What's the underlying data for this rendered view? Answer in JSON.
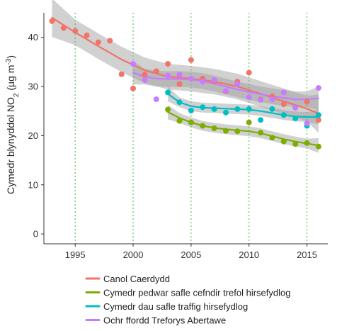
{
  "chart_data": {
    "type": "scatter",
    "title": "",
    "xlabel": "",
    "ylabel": "Cymedr blynyddol NO",
    "ylabel_sub": "2",
    "ylabel_units": " (µg m",
    "ylabel_sup": "-3",
    "ylabel_close": ")",
    "xlim": [
      1992.3,
      2016.8
    ],
    "ylim": [
      -2,
      45
    ],
    "xticks": [
      1995,
      2000,
      2005,
      2010,
      2015
    ],
    "xtick_labels": [
      "1995",
      "2000",
      "2005",
      "2010",
      "2015"
    ],
    "yticks": [
      0,
      10,
      20,
      30,
      40
    ],
    "ytick_labels": [
      "0",
      "10",
      "20",
      "30",
      "40"
    ],
    "vertical_gridlines": [
      1995,
      2000,
      2005,
      2010,
      2015
    ],
    "legend_position": "bottom",
    "series": [
      {
        "name": "Canol Caerdydd",
        "color": "#f07468",
        "points": [
          [
            1993,
            43.3
          ],
          [
            1994,
            41.9
          ],
          [
            1995,
            41.3
          ],
          [
            1996,
            40.4
          ],
          [
            1997,
            39.0
          ],
          [
            1998,
            39.3
          ],
          [
            1999,
            32.5
          ],
          [
            2000,
            29.6
          ],
          [
            2001,
            32.4
          ],
          [
            2002,
            33.1
          ],
          [
            2003,
            34.6
          ],
          [
            2004,
            30.5
          ],
          [
            2005,
            35.4
          ],
          [
            2006,
            31.6
          ],
          [
            2007,
            31.0
          ],
          [
            2008,
            29.0
          ],
          [
            2009,
            31.0
          ],
          [
            2010,
            32.8
          ],
          [
            2011,
            27.4
          ],
          [
            2012,
            28.0
          ],
          [
            2013,
            26.4
          ],
          [
            2014,
            25.7
          ],
          [
            2015,
            26.9
          ],
          [
            2016,
            23.2
          ]
        ],
        "trend": [
          [
            1993,
            44.0
          ],
          [
            1995,
            41.0
          ],
          [
            1997,
            38.2
          ],
          [
            1999,
            35.5
          ],
          [
            2001,
            33.3
          ],
          [
            2003,
            32.0
          ],
          [
            2005,
            31.6
          ],
          [
            2007,
            31.0
          ],
          [
            2009,
            30.0
          ],
          [
            2011,
            28.5
          ],
          [
            2013,
            27.0
          ],
          [
            2015,
            25.5
          ],
          [
            2016,
            24.5
          ]
        ]
      },
      {
        "name": "Cymedr pedwar safle cefndir trefol hirsefydlog",
        "color": "#7cae00",
        "points": [
          [
            2003,
            25.3
          ],
          [
            2004,
            23.0
          ],
          [
            2005,
            22.7
          ],
          [
            2006,
            22.0
          ],
          [
            2007,
            21.5
          ],
          [
            2008,
            21.0
          ],
          [
            2009,
            20.9
          ],
          [
            2010,
            22.7
          ],
          [
            2011,
            20.6
          ],
          [
            2012,
            19.6
          ],
          [
            2013,
            18.8
          ],
          [
            2014,
            18.3
          ],
          [
            2015,
            18.5
          ],
          [
            2016,
            17.8
          ]
        ],
        "trend": [
          [
            2003,
            24.8
          ],
          [
            2004,
            23.6
          ],
          [
            2005,
            22.7
          ],
          [
            2006,
            22.0
          ],
          [
            2007,
            21.6
          ],
          [
            2008,
            21.3
          ],
          [
            2009,
            21.1
          ],
          [
            2010,
            20.9
          ],
          [
            2011,
            20.5
          ],
          [
            2012,
            19.9
          ],
          [
            2013,
            19.3
          ],
          [
            2014,
            18.8
          ],
          [
            2015,
            18.4
          ],
          [
            2016,
            18.0
          ]
        ]
      },
      {
        "name": "Cymedr dau safle traffig hirsefydlog",
        "color": "#00bfc4",
        "points": [
          [
            2003,
            28.8
          ],
          [
            2004,
            26.8
          ],
          [
            2005,
            25.1
          ],
          [
            2006,
            25.8
          ],
          [
            2007,
            25.4
          ],
          [
            2008,
            24.7
          ],
          [
            2009,
            25.4
          ],
          [
            2010,
            25.4
          ],
          [
            2011,
            23.2
          ],
          [
            2012,
            25.4
          ],
          [
            2013,
            24.2
          ],
          [
            2014,
            23.5
          ],
          [
            2015,
            22.0
          ],
          [
            2016,
            24.2
          ]
        ],
        "trend": [
          [
            2003,
            28.5
          ],
          [
            2004,
            26.8
          ],
          [
            2005,
            26.0
          ],
          [
            2006,
            25.7
          ],
          [
            2007,
            25.6
          ],
          [
            2008,
            25.5
          ],
          [
            2009,
            25.4
          ],
          [
            2010,
            25.3
          ],
          [
            2011,
            25.0
          ],
          [
            2012,
            24.6
          ],
          [
            2013,
            24.2
          ],
          [
            2014,
            23.9
          ],
          [
            2015,
            23.8
          ],
          [
            2016,
            23.8
          ]
        ]
      },
      {
        "name": "Ochr ffordd Treforys Abertawe",
        "color": "#c77cff",
        "points": [
          [
            2000,
            34.6
          ],
          [
            2001,
            31.3
          ],
          [
            2002,
            27.4
          ],
          [
            2003,
            32.2
          ],
          [
            2004,
            32.4
          ],
          [
            2005,
            31.6
          ],
          [
            2006,
            31.0
          ],
          [
            2007,
            31.3
          ],
          [
            2008,
            29.1
          ],
          [
            2009,
            30.5
          ],
          [
            2010,
            27.8
          ],
          [
            2011,
            27.3
          ],
          [
            2012,
            27.4
          ],
          [
            2013,
            28.8
          ],
          [
            2014,
            25.7
          ],
          [
            2015,
            22.5
          ],
          [
            2016,
            29.7
          ]
        ],
        "trend": [
          [
            2000,
            32.8
          ],
          [
            2001,
            32.0
          ],
          [
            2002,
            31.6
          ],
          [
            2003,
            31.5
          ],
          [
            2004,
            31.5
          ],
          [
            2005,
            31.4
          ],
          [
            2006,
            31.1
          ],
          [
            2007,
            30.6
          ],
          [
            2008,
            30.0
          ],
          [
            2009,
            29.4
          ],
          [
            2010,
            28.9
          ],
          [
            2011,
            28.4
          ],
          [
            2012,
            28.0
          ],
          [
            2013,
            27.7
          ],
          [
            2014,
            27.4
          ],
          [
            2015,
            27.4
          ],
          [
            2016,
            27.6
          ]
        ]
      }
    ]
  }
}
